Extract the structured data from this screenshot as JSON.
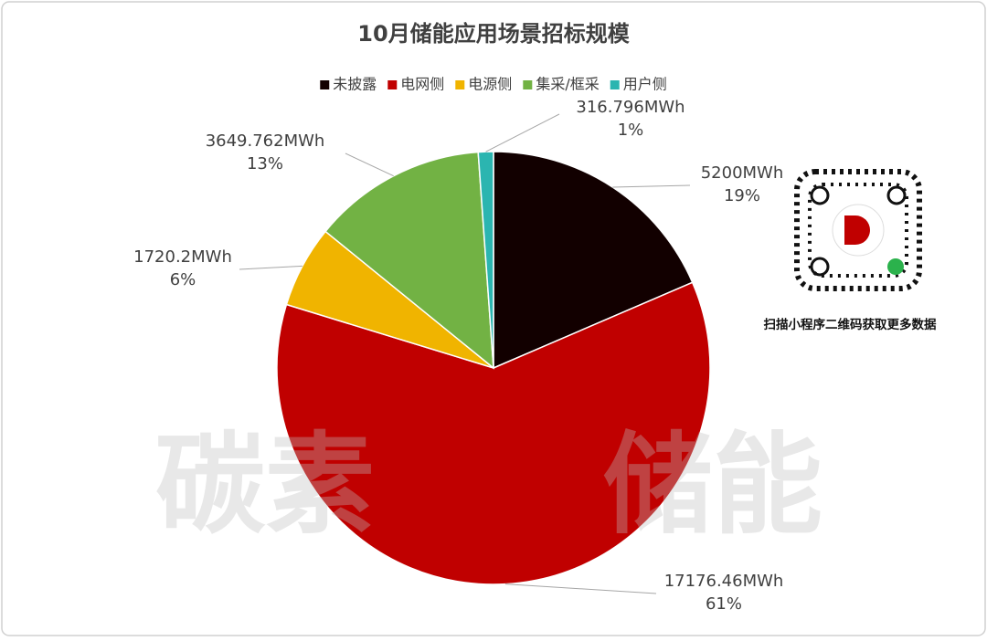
{
  "chart_data": {
    "type": "pie",
    "title": "10月储能应用场景招标规模",
    "categories": [
      "未披露",
      "电网侧",
      "电源侧",
      "集采/框采",
      "用户侧"
    ],
    "values": [
      5200,
      17176.46,
      1720.2,
      3649.762,
      316.796
    ],
    "value_labels": [
      "5200MWh",
      "17176.46MWh",
      "1720.2MWh",
      "3649.762MWh",
      "316.796MWh"
    ],
    "percent_labels": [
      "19%",
      "61%",
      "6%",
      "13%",
      "1%"
    ],
    "colors": [
      "#120000",
      "#c00000",
      "#f0b400",
      "#72b244",
      "#2bb5b0"
    ],
    "legend": "top"
  },
  "watermark": [
    "碳素",
    "储能"
  ],
  "side_note": "扫描小程序二维码获取更多数据"
}
